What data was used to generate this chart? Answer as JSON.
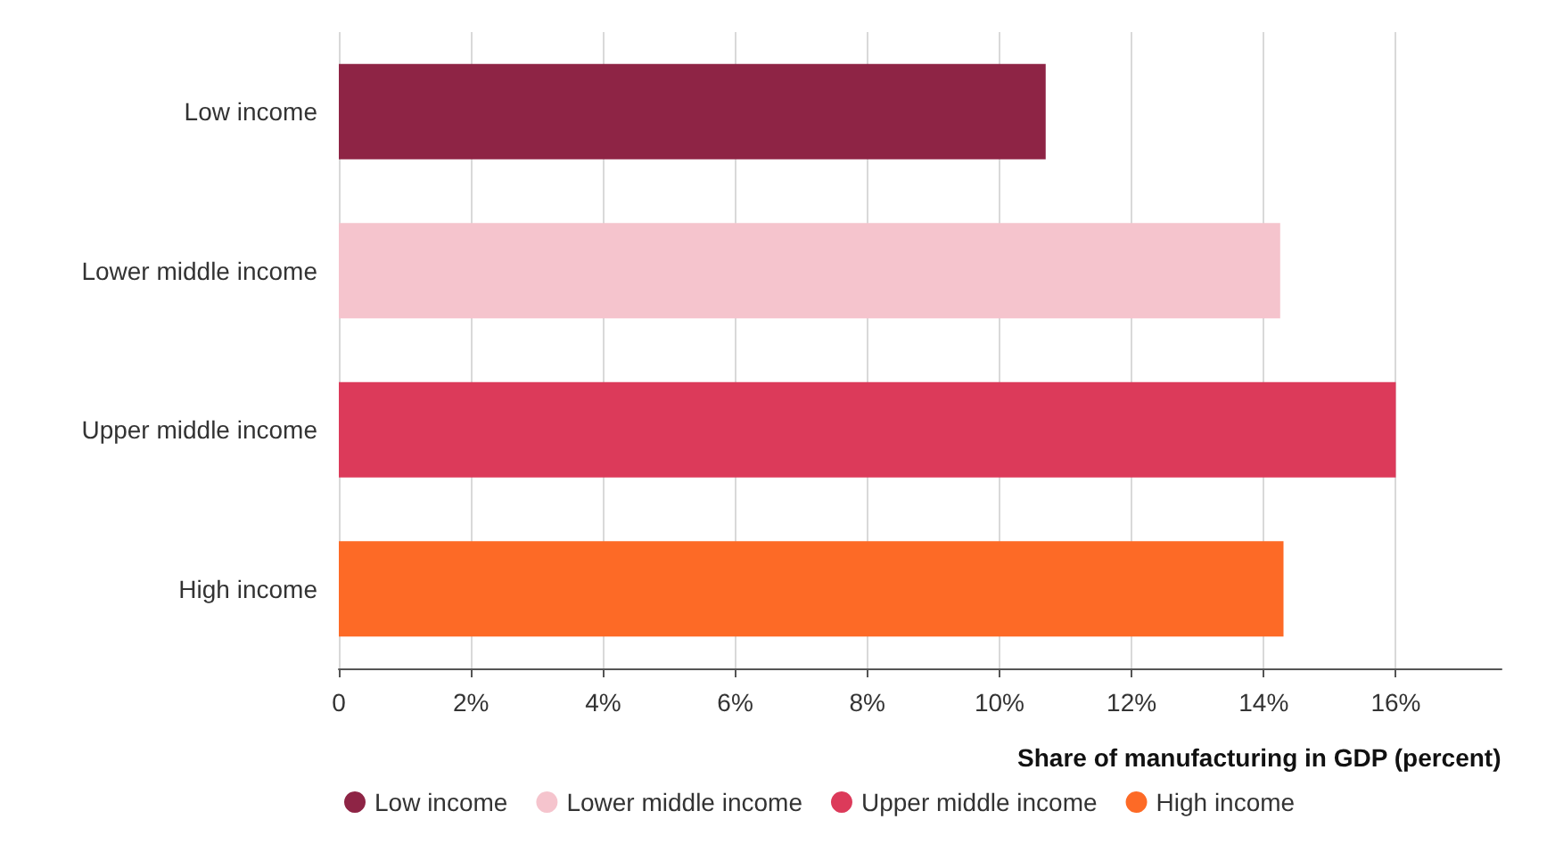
{
  "chart_data": {
    "type": "bar",
    "orientation": "horizontal",
    "stacked": true,
    "xlabel": "Share of manufacturing in GDP (percent)",
    "categories": [
      "Low income",
      "Lower middle income",
      "Upper middle income",
      "High income"
    ],
    "series": [
      {
        "name": "Low income",
        "color": "#8e2445",
        "values": [
          10.7,
          null,
          null,
          null
        ]
      },
      {
        "name": "Lower middle income",
        "color": "#f5c4cd",
        "values": [
          null,
          14.25,
          null,
          null
        ]
      },
      {
        "name": "Upper middle income",
        "color": "#dc3a5a",
        "values": [
          null,
          null,
          16.0,
          null
        ]
      },
      {
        "name": "High income",
        "color": "#fd6a26",
        "values": [
          null,
          null,
          null,
          14.3
        ]
      }
    ],
    "xlim": [
      0,
      17.6
    ],
    "xticks": [
      0,
      {
        "value": 2,
        "label": "2%"
      },
      {
        "value": 4,
        "label": "4%"
      },
      {
        "value": 6,
        "label": "6%"
      },
      {
        "value": 8,
        "label": "8%"
      },
      {
        "value": 10,
        "label": "10%"
      },
      {
        "value": 12,
        "label": "12%"
      },
      {
        "value": 14,
        "label": "14%"
      },
      {
        "value": 16,
        "label": "16%"
      }
    ],
    "grid": "x",
    "legend": "bottom",
    "marker": "circle"
  }
}
